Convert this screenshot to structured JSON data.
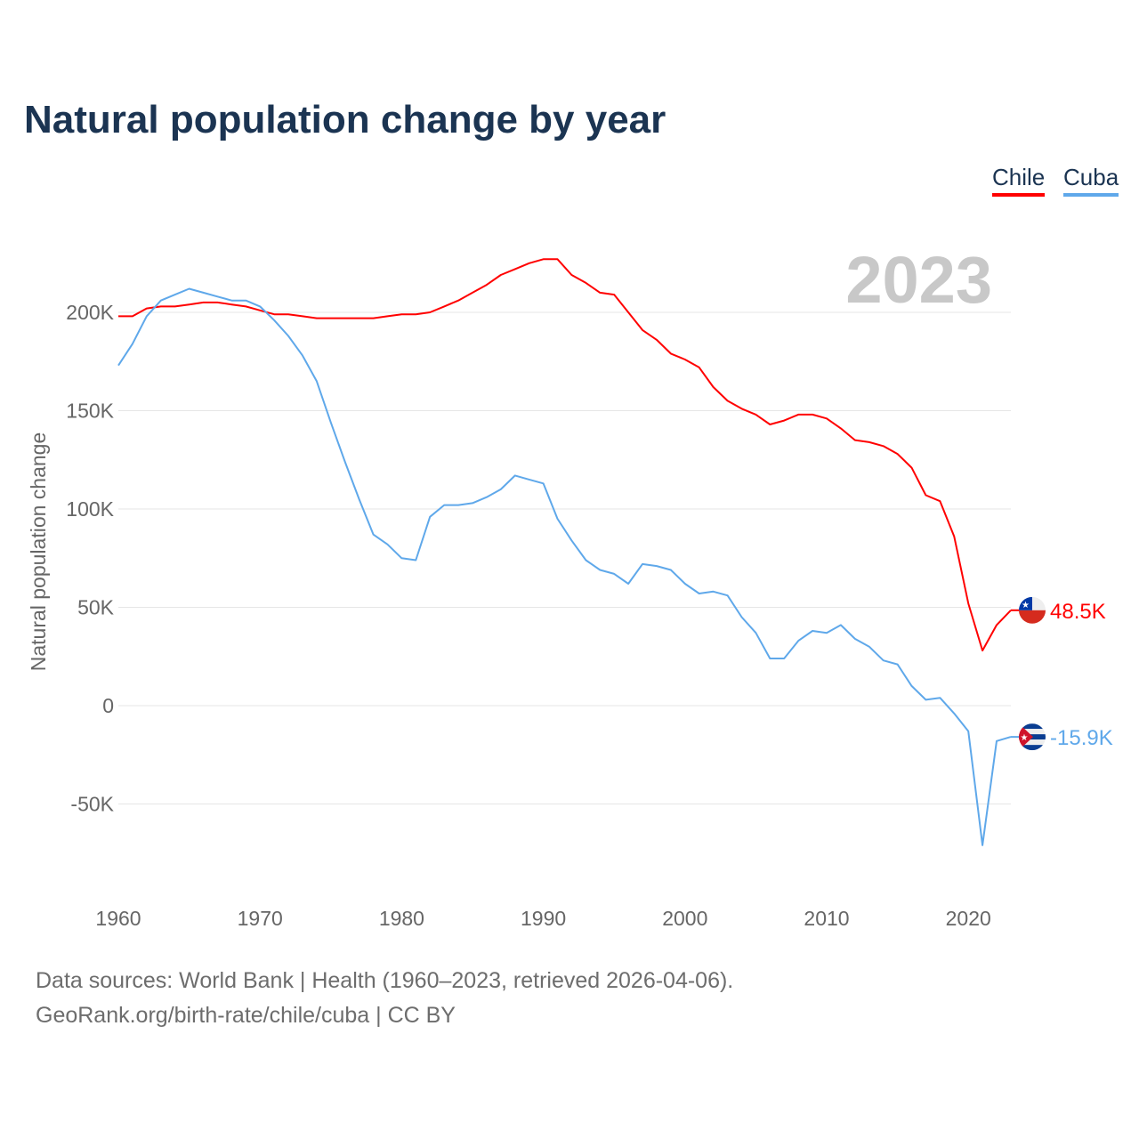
{
  "chart_data": {
    "type": "line",
    "title": "Natural population change by year",
    "xlabel": "",
    "ylabel": "Natural population change",
    "xlim": [
      1960,
      2023
    ],
    "ylim": [
      -90000,
      235000
    ],
    "grid": true,
    "legend_placement": "top-right",
    "year_label": "2023",
    "x_ticks": [
      1960,
      1970,
      1980,
      1990,
      2000,
      2010,
      2020
    ],
    "x_tick_labels": [
      "1960",
      "1970",
      "1980",
      "1990",
      "2000",
      "2010",
      "2020"
    ],
    "y_ticks": [
      200000,
      150000,
      100000,
      50000,
      0,
      -50000
    ],
    "y_tick_labels": [
      "200K",
      "150K",
      "100K",
      "50K",
      "0",
      "-50K"
    ],
    "x": [
      1960,
      1961,
      1962,
      1963,
      1964,
      1965,
      1966,
      1967,
      1968,
      1969,
      1970,
      1971,
      1972,
      1973,
      1974,
      1975,
      1976,
      1977,
      1978,
      1979,
      1980,
      1981,
      1982,
      1983,
      1984,
      1985,
      1986,
      1987,
      1988,
      1989,
      1990,
      1991,
      1992,
      1993,
      1994,
      1995,
      1996,
      1997,
      1998,
      1999,
      2000,
      2001,
      2002,
      2003,
      2004,
      2005,
      2006,
      2007,
      2008,
      2009,
      2010,
      2011,
      2012,
      2013,
      2014,
      2015,
      2016,
      2017,
      2018,
      2019,
      2020,
      2021,
      2022,
      2023
    ],
    "series": [
      {
        "name": "Chile",
        "color": "#ff0000",
        "end_label": "48.5K",
        "values": [
          198000,
          198000,
          202000,
          203000,
          203000,
          204000,
          205000,
          205000,
          204000,
          203000,
          201000,
          199000,
          199000,
          198000,
          197000,
          197000,
          197000,
          197000,
          197000,
          198000,
          199000,
          199000,
          200000,
          203000,
          206000,
          210000,
          214000,
          219000,
          222000,
          225000,
          227000,
          227000,
          219000,
          215000,
          210000,
          209000,
          200000,
          191000,
          186000,
          179000,
          176000,
          172000,
          162000,
          155000,
          151000,
          148000,
          143000,
          145000,
          148000,
          148000,
          146000,
          141000,
          135000,
          134000,
          132000,
          128000,
          121000,
          107000,
          104000,
          86000,
          52000,
          28000,
          41000,
          48500
        ]
      },
      {
        "name": "Cuba",
        "color": "#5fa8ea",
        "end_label": "-15.9K",
        "values": [
          173000,
          184000,
          198000,
          206000,
          209000,
          212000,
          210000,
          208000,
          206000,
          206000,
          203000,
          196000,
          188000,
          178000,
          165000,
          144000,
          124000,
          105000,
          87000,
          82000,
          75000,
          74000,
          96000,
          102000,
          102000,
          103000,
          106000,
          110000,
          117000,
          115000,
          113000,
          95000,
          84000,
          74000,
          69000,
          67000,
          62000,
          72000,
          71000,
          69000,
          62000,
          57000,
          58000,
          56000,
          45000,
          37000,
          24000,
          24000,
          33000,
          38000,
          37000,
          41000,
          34000,
          30000,
          23000,
          21000,
          10000,
          3000,
          4000,
          -4000,
          -13000,
          -71000,
          -18000,
          -15900
        ]
      }
    ]
  },
  "footer": {
    "line1": "Data sources: World Bank | Health (1960–2023, retrieved 2026-04-06).",
    "line2": "GeoRank.org/birth-rate/chile/cuba | CC BY"
  }
}
